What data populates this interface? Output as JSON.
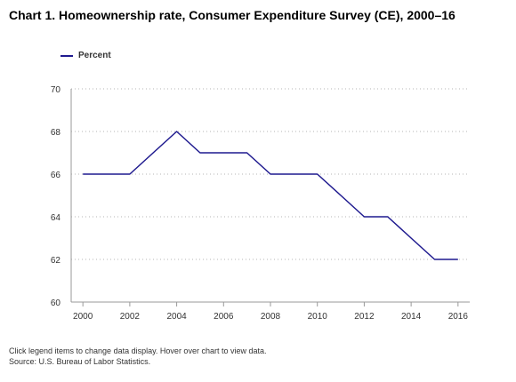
{
  "title": "Chart 1. Homeownership rate, Consumer Expenditure Survey (CE), 2000–16",
  "legend_label": "Percent",
  "line_color": "#1f1a8f",
  "footer_note": "Click legend items to change data display. Hover over chart to view data.",
  "footer_source": "Source: U.S. Bureau of Labor Statistics.",
  "chart_data": {
    "type": "line",
    "title": "Chart 1. Homeownership rate, Consumer Expenditure Survey (CE), 2000–16",
    "xlabel": "",
    "ylabel": "",
    "x": [
      2000,
      2001,
      2002,
      2003,
      2004,
      2005,
      2006,
      2007,
      2008,
      2009,
      2010,
      2011,
      2012,
      2013,
      2014,
      2015,
      2016
    ],
    "series": [
      {
        "name": "Percent",
        "values": [
          66,
          66,
          66,
          67,
          68,
          67,
          67,
          67,
          66,
          66,
          66,
          65,
          64,
          64,
          63,
          62,
          62
        ]
      }
    ],
    "xticks": [
      2000,
      2002,
      2004,
      2006,
      2008,
      2010,
      2012,
      2014,
      2016
    ],
    "yticks": [
      60,
      62,
      64,
      66,
      68,
      70
    ],
    "xlim": [
      1999.5,
      2016.5
    ],
    "ylim": [
      60,
      70
    ],
    "grid": "horizontal-dotted",
    "legend_position": "top-left"
  }
}
